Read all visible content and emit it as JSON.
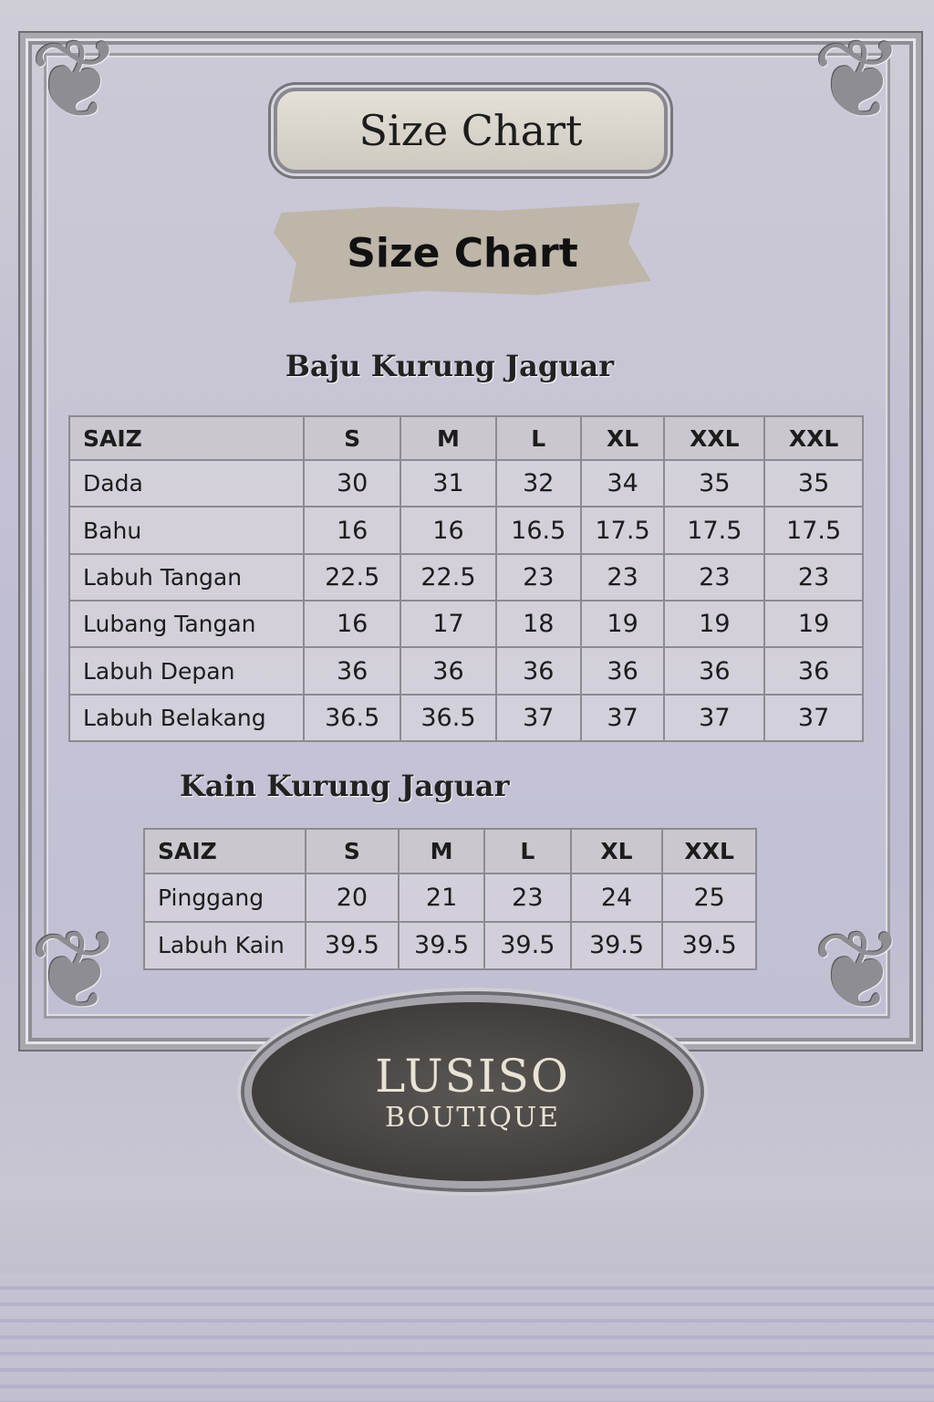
{
  "banner_title": "Size Chart",
  "paper_title": "Size Chart",
  "baju": {
    "heading": "Baju Kurung Jaguar",
    "headers": [
      "SAIZ",
      "S",
      "M",
      "L",
      "XL",
      "XXL",
      "XXL"
    ],
    "rows": [
      [
        "Dada",
        "30",
        "31",
        "32",
        "34",
        "35",
        "35"
      ],
      [
        "Bahu",
        "16",
        "16",
        "16.5",
        "17.5",
        "17.5",
        "17.5"
      ],
      [
        "Labuh Tangan",
        "22.5",
        "22.5",
        "23",
        "23",
        "23",
        "23"
      ],
      [
        "Lubang Tangan",
        "16",
        "17",
        "18",
        "19",
        "19",
        "19"
      ],
      [
        "Labuh Depan",
        "36",
        "36",
        "36",
        "36",
        "36",
        "36"
      ],
      [
        "Labuh Belakang",
        "36.5",
        "36.5",
        "37",
        "37",
        "37",
        "37"
      ]
    ]
  },
  "kain": {
    "heading": "Kain Kurung Jaguar",
    "headers": [
      "SAIZ",
      "S",
      "M",
      "L",
      "XL",
      "XXL"
    ],
    "rows": [
      [
        "Pinggang",
        "20",
        "21",
        "23",
        "24",
        "25"
      ],
      [
        "Labuh Kain",
        "39.5",
        "39.5",
        "39.5",
        "39.5",
        "39.5"
      ]
    ]
  },
  "logo": {
    "line1": "LUSISO",
    "line2": "BOUTIQUE"
  }
}
